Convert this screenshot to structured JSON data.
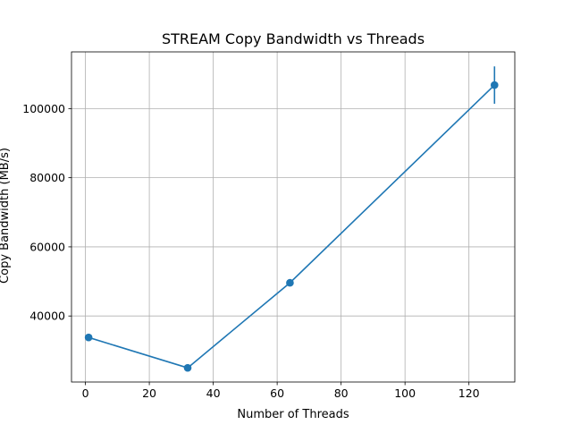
{
  "chart_data": {
    "type": "line",
    "title": "STREAM Copy Bandwidth vs Threads",
    "xlabel": "Number of Threads",
    "ylabel": "Copy Bandwidth (MB/s)",
    "xlim": [
      -4.35,
      134.35
    ],
    "ylim": [
      20900,
      116400
    ],
    "x_ticks": [
      0,
      20,
      40,
      60,
      80,
      100,
      120
    ],
    "y_ticks": [
      40000,
      60000,
      80000,
      100000
    ],
    "grid": true,
    "legend": "none",
    "series": [
      {
        "x": [
          1,
          32,
          64,
          128
        ],
        "values": [
          33800,
          25000,
          49600,
          106800
        ],
        "error": [
          0,
          0,
          0,
          5400
        ],
        "color": "#1f77b4",
        "marker": "circle"
      }
    ]
  }
}
